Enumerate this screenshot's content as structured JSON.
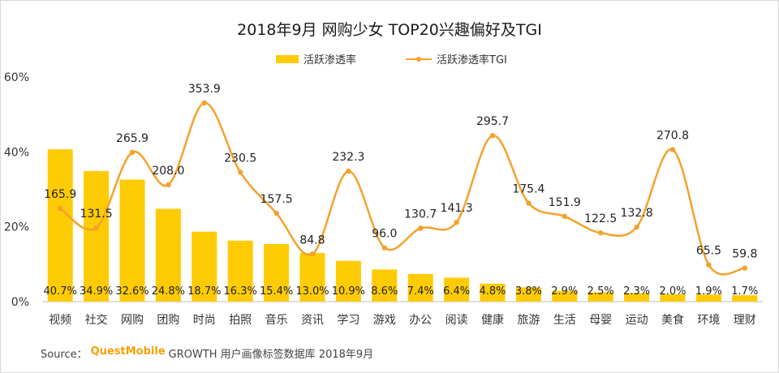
{
  "chart_data": {
    "type": "bar",
    "title": "2018年9月 网购少女 TOP20兴趣偏好及TGI",
    "categories": [
      "视频",
      "社交",
      "网购",
      "团购",
      "时尚",
      "拍照",
      "音乐",
      "资讯",
      "学习",
      "游戏",
      "办公",
      "阅读",
      "健康",
      "旅游",
      "生活",
      "母婴",
      "运动",
      "美食",
      "环境",
      "理财"
    ],
    "series": [
      {
        "name": "活跃渗透率",
        "type": "bar",
        "values": [
          40.7,
          34.9,
          32.6,
          24.8,
          18.7,
          16.3,
          15.4,
          13.0,
          10.9,
          8.6,
          7.4,
          6.4,
          4.8,
          3.8,
          2.9,
          2.5,
          2.3,
          2.0,
          1.9,
          1.7
        ],
        "labels": [
          "40.7%",
          "34.9%",
          "32.6%",
          "24.8%",
          "18.7%",
          "16.3%",
          "15.4%",
          "13.0%",
          "10.9%",
          "8.6%",
          "7.4%",
          "6.4%",
          "4.8%",
          "3.8%",
          "2.9%",
          "2.5%",
          "2.3%",
          "2.0%",
          "1.9%",
          "1.7%"
        ]
      },
      {
        "name": "活跃渗透率TGI",
        "type": "line",
        "values": [
          165.9,
          131.5,
          265.9,
          208.0,
          353.9,
          230.5,
          157.5,
          84.8,
          232.3,
          96.0,
          130.7,
          141.3,
          295.7,
          175.4,
          151.9,
          122.5,
          132.8,
          270.8,
          65.5,
          59.8
        ],
        "labels": [
          "165.9",
          "131.5",
          "265.9",
          "208.0",
          "353.9",
          "230.5",
          "157.5",
          "84.8",
          "232.3",
          "96.0",
          "130.7",
          "141.3",
          "295.7",
          "175.4",
          "151.9",
          "122.5",
          "132.8",
          "270.8",
          "65.5",
          "59.8"
        ]
      }
    ],
    "y_axis": {
      "range": [
        0,
        60
      ],
      "ticks": [
        0,
        20,
        40,
        60
      ],
      "tick_labels": [
        "0%",
        "20%",
        "40%",
        "60%"
      ]
    },
    "secondary_scale": [
      0,
      400
    ],
    "grid": false,
    "legend_position": "top-center",
    "colors": {
      "bar": "#FFCB05",
      "line": "#F5A12B"
    }
  },
  "source": {
    "prefix": "Source：",
    "brand": "QuestMobile",
    "text": "GROWTH 用户画像标签数据库 2018年9月"
  }
}
